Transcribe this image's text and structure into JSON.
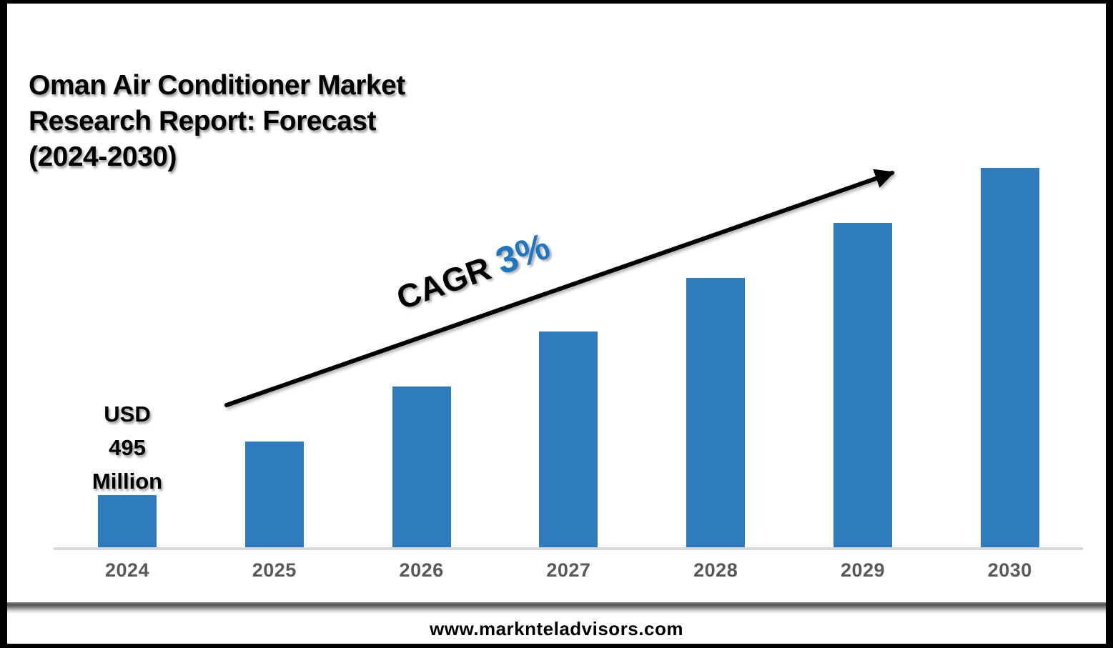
{
  "title": {
    "lines": [
      "Oman Air Conditioner Market",
      "Research Report: Forecast",
      "(2024-2030)"
    ],
    "full_text": "Oman Air Conditioner Market Research Report: Forecast (2024-2030)"
  },
  "annotations": {
    "value_label": {
      "lines": [
        "USD",
        "495",
        "Million"
      ],
      "full_text": "USD 495 Million"
    },
    "cagr": {
      "prefix": "CAGR ",
      "value": "3%",
      "value_color": "#1b76c4"
    }
  },
  "chart_data": {
    "type": "bar",
    "categories": [
      "2024",
      "2025",
      "2026",
      "2027",
      "2028",
      "2029",
      "2030"
    ],
    "values_relative": [
      74,
      149,
      226,
      303,
      378,
      455,
      532
    ],
    "value_label_2024": "USD 495 Million",
    "cagr_annotation": "CAGR 3%",
    "title": "Oman Air Conditioner Market Research Report: Forecast (2024-2030)",
    "xlabel": "",
    "ylabel": "",
    "y_axis_shown": false,
    "grid": false,
    "legend": false,
    "bar_color": "#2e7cbd",
    "axis_line_color": "#d9d9d9",
    "tick_label_color": "#595959",
    "trend_arrow": {
      "direction": "up",
      "color": "#000000"
    }
  },
  "footer": {
    "url": "www.marknteladvisors.com"
  }
}
